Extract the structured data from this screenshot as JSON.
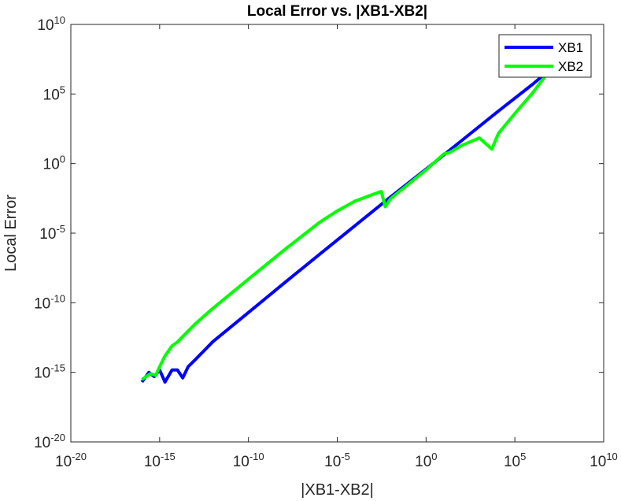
{
  "chart_data": {
    "type": "line",
    "title": "Local Error vs. |XB1-XB2|",
    "xlabel": "|XB1-XB2|",
    "ylabel": "Local Error",
    "xscale": "log",
    "yscale": "log",
    "xlim": [
      1e-20,
      10000000000.0
    ],
    "ylim": [
      1e-20,
      10000000000.0
    ],
    "grid": false,
    "legend_location": "top-right",
    "x_ticks": [
      {
        "base": "10",
        "exp": "-20",
        "value": 1e-20
      },
      {
        "base": "10",
        "exp": "-15",
        "value": 1e-15
      },
      {
        "base": "10",
        "exp": "-10",
        "value": 1e-10
      },
      {
        "base": "10",
        "exp": "-5",
        "value": 1e-05
      },
      {
        "base": "10",
        "exp": "0",
        "value": 1
      },
      {
        "base": "10",
        "exp": "5",
        "value": 100000.0
      },
      {
        "base": "10",
        "exp": "10",
        "value": 10000000000.0
      }
    ],
    "y_ticks": [
      {
        "base": "10",
        "exp": "-20",
        "value": 1e-20
      },
      {
        "base": "10",
        "exp": "-15",
        "value": 1e-15
      },
      {
        "base": "10",
        "exp": "-10",
        "value": 1e-10
      },
      {
        "base": "10",
        "exp": "-5",
        "value": 1e-05
      },
      {
        "base": "10",
        "exp": "0",
        "value": 1
      },
      {
        "base": "10",
        "exp": "5",
        "value": 100000.0
      },
      {
        "base": "10",
        "exp": "10",
        "value": 10000000000.0
      }
    ],
    "series": [
      {
        "name": "XB1",
        "color": "#0000ff",
        "x": [
          1e-16,
          2.5e-16,
          5e-16,
          1e-15,
          2e-15,
          5e-15,
          1e-14,
          2e-14,
          4e-14,
          1e-13,
          1e-12,
          1e-10,
          1e-08,
          1e-06,
          0.0001,
          0.01,
          1,
          100,
          10000.0,
          1000000.0,
          10000000.0
        ],
        "y": [
          2e-16,
          1e-15,
          5e-16,
          1.5e-15,
          2e-16,
          1.5e-15,
          1.5e-15,
          4e-16,
          2.5e-15,
          8e-15,
          1.6e-13,
          2e-11,
          2.5e-09,
          3e-07,
          3.5e-05,
          0.004,
          0.4,
          45,
          5000,
          500000.0,
          6000000.0
        ]
      },
      {
        "name": "XB2",
        "color": "#00ff00",
        "x": [
          1e-16,
          3e-16,
          6e-16,
          1e-15,
          2e-15,
          5e-15,
          1e-14,
          1e-13,
          1e-12,
          1e-10,
          1e-08,
          1e-06,
          1e-05,
          0.0001,
          0.001,
          0.003,
          0.005,
          0.01,
          1,
          10,
          20,
          100,
          1000,
          5000,
          12000.0,
          100000.0,
          1000000.0,
          10000000.0
        ],
        "y": [
          3e-16,
          8e-16,
          6e-16,
          2.5e-15,
          1.5e-14,
          8e-14,
          1.5e-13,
          3e-12,
          4e-11,
          5e-09,
          6e-07,
          6e-05,
          0.0004,
          0.002,
          0.006,
          0.01,
          0.0008,
          0.003,
          0.35,
          5,
          6,
          20,
          70,
          11,
          150,
          4000,
          120000.0,
          6000000.0
        ]
      }
    ]
  }
}
